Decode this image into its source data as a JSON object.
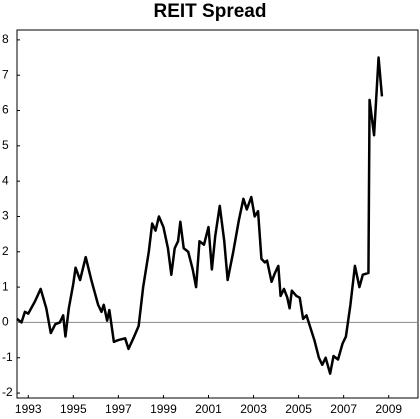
{
  "chart_data": {
    "type": "line",
    "title": "REIT Spread",
    "x": [
      1992.5,
      1992.7,
      1992.85,
      1993.0,
      1993.3,
      1993.55,
      1993.8,
      1994.0,
      1994.2,
      1994.4,
      1994.55,
      1994.65,
      1994.8,
      1995.0,
      1995.1,
      1995.3,
      1995.55,
      1995.8,
      1996.1,
      1996.25,
      1996.35,
      1996.5,
      1996.6,
      1996.8,
      1997.0,
      1997.3,
      1997.45,
      1997.7,
      1997.9,
      1998.1,
      1998.35,
      1998.5,
      1998.65,
      1998.8,
      1999.0,
      1999.2,
      1999.35,
      1999.5,
      1999.65,
      1999.75,
      1999.9,
      2000.1,
      2000.3,
      2000.45,
      2000.6,
      2000.8,
      2001.0,
      2001.15,
      2001.3,
      2001.5,
      2001.7,
      2001.85,
      2002.1,
      2002.35,
      2002.55,
      2002.7,
      2002.9,
      2003.05,
      2003.2,
      2003.35,
      2003.5,
      2003.6,
      2003.8,
      2003.95,
      2004.1,
      2004.2,
      2004.35,
      2004.5,
      2004.6,
      2004.7,
      2004.9,
      2005.05,
      2005.2,
      2005.35,
      2005.5,
      2005.7,
      2005.9,
      2006.05,
      2006.2,
      2006.4,
      2006.55,
      2006.75,
      2006.95,
      2007.1,
      2007.3,
      2007.5,
      2007.7,
      2007.85,
      2008.1,
      2008.15,
      2008.35,
      2008.55,
      2008.7
    ],
    "series": [
      {
        "color": "#000000",
        "values": [
          0.1,
          0.0,
          0.3,
          0.25,
          0.6,
          0.95,
          0.4,
          -0.3,
          -0.05,
          0.0,
          0.2,
          -0.4,
          0.4,
          1.1,
          1.55,
          1.2,
          1.85,
          1.2,
          0.5,
          0.3,
          0.5,
          0.05,
          0.35,
          -0.55,
          -0.5,
          -0.45,
          -0.75,
          -0.4,
          -0.1,
          1.0,
          2.0,
          2.8,
          2.6,
          3.0,
          2.7,
          2.1,
          1.35,
          2.1,
          2.3,
          2.85,
          2.1,
          2.0,
          1.5,
          1.0,
          2.3,
          2.2,
          2.7,
          1.5,
          2.45,
          3.3,
          2.3,
          1.2,
          2.0,
          2.9,
          3.5,
          3.2,
          3.55,
          3.0,
          3.15,
          1.8,
          1.7,
          1.75,
          1.15,
          1.4,
          1.6,
          0.75,
          0.95,
          0.7,
          0.4,
          0.9,
          0.75,
          0.7,
          0.1,
          0.2,
          -0.1,
          -0.5,
          -1.0,
          -1.2,
          -1.0,
          -1.45,
          -0.95,
          -1.05,
          -0.6,
          -0.4,
          0.5,
          1.6,
          1.0,
          1.35,
          1.4,
          6.3,
          5.3,
          7.5,
          6.4
        ]
      }
    ],
    "xlim": [
      1992.5,
      2010.3
    ],
    "xticks": [
      1993,
      1995,
      1997,
      1999,
      2001,
      2003,
      2005,
      2007,
      2009
    ],
    "ylim": [
      -2.14,
      8.28
    ],
    "yticks": [
      -2,
      -1,
      0,
      1,
      2,
      3,
      4,
      5,
      6,
      7,
      8
    ],
    "zero_line": true
  }
}
